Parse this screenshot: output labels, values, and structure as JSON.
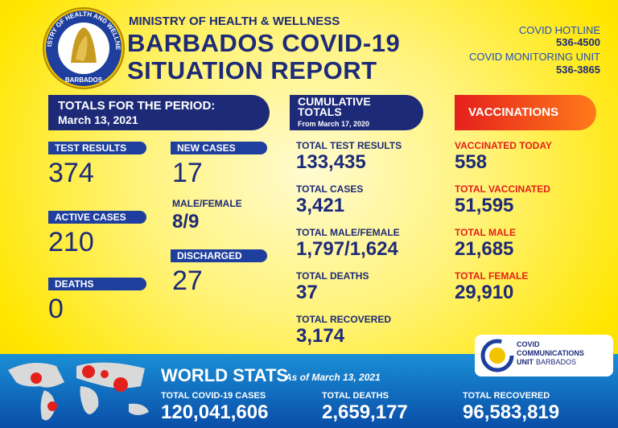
{
  "header": {
    "logo_ring": "MINISTRY OF HEALTH AND WELLNESS",
    "logo_country": "BARBADOS",
    "ministry": "MINISTRY OF HEALTH & WELLNESS",
    "title_line1": "BARBADOS COVID-19",
    "title_line2": "SITUATION REPORT",
    "hotline_label": "COVID HOTLINE",
    "hotline_number": "536-4500",
    "monitoring_label": "COVID MONITORING UNIT",
    "monitoring_number": "536-3865"
  },
  "period": {
    "heading": "TOTALS FOR THE PERIOD:",
    "date": "March 13, 2021",
    "items": [
      {
        "label": "TEST RESULTS",
        "value": "374"
      },
      {
        "label": "ACTIVE CASES",
        "value": "210"
      },
      {
        "label": "DEATHS",
        "value": "0"
      },
      {
        "label": "NEW CASES",
        "value": "17"
      },
      {
        "label": "MALE/FEMALE",
        "value": "8/9"
      },
      {
        "label": "DISCHARGED",
        "value": "27"
      }
    ]
  },
  "cumulative": {
    "heading_line1": "CUMULATIVE",
    "heading_line2": "TOTALS",
    "subheading": "From March 17, 2020",
    "items": [
      {
        "label": "TOTAL TEST RESULTS",
        "value": "133,435"
      },
      {
        "label": "TOTAL CASES",
        "value": "3,421"
      },
      {
        "label": "TOTAL MALE/FEMALE",
        "value": "1,797/1,624"
      },
      {
        "label": "TOTAL DEATHS",
        "value": "37"
      },
      {
        "label": "TOTAL RECOVERED",
        "value": "3,174"
      }
    ]
  },
  "vaccinations": {
    "heading": "VACCINATIONS",
    "items": [
      {
        "label": "VACCINATED TODAY",
        "value": "558"
      },
      {
        "label": "TOTAL VACCINATED",
        "value": "51,595"
      },
      {
        "label": "TOTAL MALE",
        "value": "21,685"
      },
      {
        "label": "TOTAL FEMALE",
        "value": "29,910"
      }
    ]
  },
  "comms_logo": {
    "line1": "COVID",
    "line2": "COMMUNICATIONS",
    "line3": "UNIT",
    "line4": "BARBADOS"
  },
  "world": {
    "heading": "WORLD STATS",
    "as_of": "As of March 13, 2021",
    "items": [
      {
        "label": "TOTAL COVID-19 CASES",
        "value": "120,041,606"
      },
      {
        "label": "TOTAL DEATHS",
        "value": "2,659,177"
      },
      {
        "label": "TOTAL RECOVERED",
        "value": "96,583,819"
      }
    ]
  }
}
